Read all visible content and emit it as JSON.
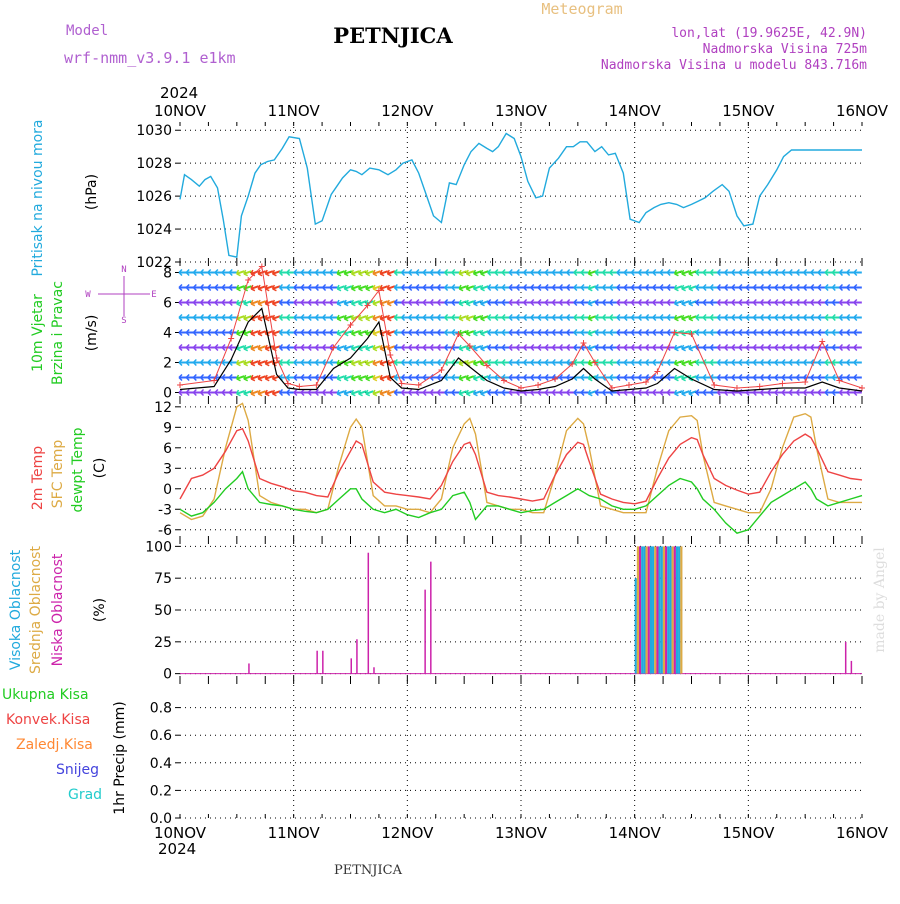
{
  "colors": {
    "model": "#b060d0",
    "meteogram": "#e8c080",
    "info": "#b040c0",
    "pressure": "#22aadd",
    "wind_label": "#22cc22",
    "wind_label2": "#22cc22",
    "temp2m": "#ee4444",
    "sfc": "#ddaa44",
    "dewpt": "#22cc22",
    "cloud_high": "#22aadd",
    "cloud_mid": "#ddaa44",
    "cloud_low": "#cc22aa",
    "precip_total": "#22cc22",
    "precip_conv": "#ee4444",
    "precip_frozen": "#ff8833",
    "snow": "#4444dd",
    "hail": "#22cccc",
    "wind_speed_line": "#000000",
    "gust_line": "#ee4444",
    "watermark": "#dddddd"
  },
  "header": {
    "model_label": "Model",
    "model_name": "wrf-nmm_v3.9.1  e1km",
    "station_title": "PETNJICA",
    "meteogram_label": "Meteogram",
    "lonlat": "lon,lat (19.9625E, 42.9N)",
    "elevation": "Nadmorska Visina 725m",
    "model_elevation": "Nadmorska Visina u modelu 843.716m"
  },
  "footer": {
    "station_name": "PETNJICA",
    "watermark": "made by Angel"
  },
  "axis": {
    "year_top": "2024",
    "year_bottom": "2024",
    "dates": [
      "10NOV",
      "11NOV",
      "12NOV",
      "13NOV",
      "14NOV",
      "15NOV",
      "16NOV"
    ]
  },
  "panels": {
    "pressure": {
      "label1": "Pritisak na nivou mora",
      "unit": "(hPa)"
    },
    "wind": {
      "label1": "10m Vjetar",
      "label2": "Brzina i Pravac",
      "unit": "(m/s)",
      "compass_n": "N",
      "compass_s": "S",
      "compass_w": "W",
      "compass_e": "E"
    },
    "temp": {
      "label1": "2m Temp",
      "label2": "SFC Temp",
      "label3": "dewpt Temp",
      "unit": "(C)"
    },
    "cloud": {
      "label1": "Visoka Oblacnost",
      "label2": "Srednja Oblacnost",
      "label3": "Niska Oblacnost",
      "unit": "(%)"
    },
    "precip": {
      "label1": "Ukupna Kisa",
      "label2": "Konvek.Kisa",
      "label3": "Zaledj.Kisa",
      "label4": "Snijeg",
      "label5": "Grad",
      "unit": "1hr Precip (mm)"
    }
  },
  "chart_data": [
    {
      "type": "line",
      "panel": "pressure",
      "ylim": [
        1022,
        1030.5
      ],
      "yticks": [
        1022,
        1024,
        1026,
        1028,
        1030
      ],
      "x_days": [
        0,
        0.04,
        0.1,
        0.17,
        0.22,
        0.27,
        0.33,
        0.38,
        0.43,
        0.5,
        0.54,
        0.6,
        0.66,
        0.71,
        0.77,
        0.83,
        0.9,
        0.96,
        1.05,
        1.12,
        1.19,
        1.25,
        1.33,
        1.38,
        1.43,
        1.5,
        1.55,
        1.6,
        1.67,
        1.75,
        1.83,
        1.9,
        1.96,
        2.04,
        2.1,
        2.17,
        2.23,
        2.3,
        2.37,
        2.43,
        2.5,
        2.56,
        2.63,
        2.7,
        2.75,
        2.8,
        2.87,
        2.94,
        3.0,
        3.06,
        3.13,
        3.19,
        3.25,
        3.33,
        3.4,
        3.46,
        3.52,
        3.58,
        3.65,
        3.71,
        3.77,
        3.83,
        3.9,
        3.96,
        4.04,
        4.1,
        4.17,
        4.23,
        4.3,
        4.37,
        4.43,
        4.5,
        4.56,
        4.62,
        4.69,
        4.77,
        4.83,
        4.9,
        4.96,
        5.04,
        5.1,
        5.17,
        5.25,
        5.31,
        5.38,
        5.44,
        5.5,
        5.56,
        5.62,
        5.69,
        5.75,
        5.81,
        5.88,
        5.94,
        6.0
      ],
      "pressure_hpa": [
        1025.8,
        1027.3,
        1027.0,
        1026.6,
        1027.0,
        1027.2,
        1026.5,
        1024.6,
        1022.4,
        1022.3,
        1024.8,
        1026.0,
        1027.4,
        1027.9,
        1028.1,
        1028.2,
        1028.9,
        1029.6,
        1029.5,
        1027.7,
        1024.3,
        1024.5,
        1026.1,
        1026.6,
        1027.1,
        1027.6,
        1027.5,
        1027.3,
        1027.7,
        1027.6,
        1027.3,
        1027.6,
        1028.0,
        1028.2,
        1027.4,
        1026.0,
        1024.8,
        1024.4,
        1026.8,
        1026.7,
        1027.9,
        1028.7,
        1029.2,
        1028.9,
        1028.7,
        1029.0,
        1029.8,
        1029.5,
        1028.4,
        1026.9,
        1025.9,
        1026.0,
        1027.7,
        1028.3,
        1029.0,
        1029.0,
        1029.3,
        1029.3,
        1028.7,
        1029.0,
        1028.5,
        1028.6,
        1027.4,
        1024.6,
        1024.4,
        1025.0,
        1025.3,
        1025.5,
        1025.6,
        1025.5,
        1025.3,
        1025.5,
        1025.7,
        1025.9,
        1026.3,
        1026.7,
        1026.3,
        1024.8,
        1024.2,
        1024.3,
        1026.0,
        1026.7,
        1027.6,
        1028.4,
        1028.8,
        1028.8,
        1028.8,
        1028.8,
        1028.8,
        1028.8,
        1028.8,
        1028.8,
        1028.8,
        1028.8,
        1028.8
      ]
    },
    {
      "type": "line",
      "panel": "wind",
      "ylim": [
        -0.5,
        8.7
      ],
      "yticks": [
        0,
        2,
        4,
        6,
        8
      ],
      "wind_speed": {
        "x_days": [
          0,
          0.3,
          0.45,
          0.6,
          0.72,
          0.85,
          0.95,
          1.05,
          1.2,
          1.35,
          1.5,
          1.65,
          1.75,
          1.85,
          1.95,
          2.1,
          2.3,
          2.45,
          2.55,
          2.7,
          2.85,
          3.0,
          3.15,
          3.3,
          3.45,
          3.55,
          3.65,
          3.8,
          3.95,
          4.1,
          4.2,
          4.35,
          4.5,
          4.7,
          4.9,
          5.1,
          5.3,
          5.5,
          5.65,
          5.8,
          6.0
        ],
        "values": [
          0.2,
          0.4,
          2.2,
          4.7,
          5.6,
          1.2,
          0.3,
          0.2,
          0.2,
          1.6,
          2.3,
          3.6,
          4.7,
          1.0,
          0.3,
          0.2,
          0.8,
          2.3,
          1.7,
          0.8,
          0.3,
          0.1,
          0.2,
          0.4,
          0.9,
          1.6,
          0.9,
          0.1,
          0.2,
          0.3,
          0.6,
          1.6,
          0.9,
          0.2,
          0.1,
          0.2,
          0.3,
          0.3,
          0.7,
          0.3,
          0.1
        ]
      },
      "gust": {
        "x_days": [
          0,
          0.3,
          0.45,
          0.6,
          0.72,
          0.85,
          0.95,
          1.05,
          1.2,
          1.35,
          1.5,
          1.65,
          1.75,
          1.85,
          1.95,
          2.1,
          2.3,
          2.45,
          2.55,
          2.7,
          2.85,
          3.0,
          3.15,
          3.3,
          3.45,
          3.55,
          3.65,
          3.8,
          3.95,
          4.1,
          4.2,
          4.35,
          4.5,
          4.7,
          4.9,
          5.1,
          5.3,
          5.5,
          5.65,
          5.8,
          6.0
        ],
        "values": [
          0.5,
          0.8,
          3.6,
          7.5,
          8.4,
          2.3,
          0.6,
          0.4,
          0.5,
          3.0,
          4.5,
          5.8,
          6.8,
          2.5,
          0.6,
          0.5,
          1.5,
          3.9,
          3.1,
          1.8,
          0.8,
          0.3,
          0.5,
          0.9,
          1.9,
          3.3,
          2.0,
          0.3,
          0.5,
          0.7,
          1.4,
          4.0,
          3.9,
          0.5,
          0.3,
          0.4,
          0.6,
          0.7,
          3.4,
          0.8,
          0.3
        ]
      },
      "barb_rows": [
        0,
        1,
        2,
        3,
        4,
        5,
        6,
        7,
        8
      ]
    },
    {
      "type": "line",
      "panel": "temperature",
      "ylim": [
        -7.5,
        13
      ],
      "yticks": [
        -6,
        -3,
        0,
        3,
        6,
        9,
        12
      ],
      "x_days": [
        0,
        0.1,
        0.2,
        0.3,
        0.4,
        0.5,
        0.55,
        0.6,
        0.7,
        0.8,
        0.9,
        1.0,
        1.1,
        1.2,
        1.3,
        1.4,
        1.5,
        1.55,
        1.6,
        1.7,
        1.8,
        1.9,
        2.0,
        2.1,
        2.2,
        2.3,
        2.4,
        2.5,
        2.55,
        2.6,
        2.7,
        2.8,
        2.9,
        3.0,
        3.1,
        3.2,
        3.3,
        3.4,
        3.5,
        3.55,
        3.6,
        3.7,
        3.8,
        3.9,
        4.0,
        4.1,
        4.2,
        4.3,
        4.4,
        4.5,
        4.55,
        4.6,
        4.7,
        4.8,
        4.9,
        5.0,
        5.1,
        5.2,
        5.3,
        5.4,
        5.5,
        5.55,
        5.6,
        5.7,
        5.8,
        5.9,
        6.0
      ],
      "t2m": [
        -1.5,
        1.5,
        2.0,
        3.0,
        5.5,
        8.5,
        8.8,
        7.0,
        1.5,
        0.8,
        0.3,
        -0.3,
        -0.5,
        -1.0,
        -1.2,
        2.5,
        5.5,
        7.0,
        6.5,
        1.0,
        -0.5,
        -0.8,
        -1.0,
        -1.2,
        -1.5,
        0.5,
        4.0,
        6.5,
        6.8,
        5.0,
        -0.5,
        -1.0,
        -1.2,
        -1.5,
        -1.8,
        -1.5,
        2.0,
        5.0,
        6.8,
        6.5,
        4.0,
        -0.8,
        -1.5,
        -2.0,
        -2.2,
        -1.8,
        1.5,
        4.5,
        6.5,
        7.5,
        7.2,
        5.0,
        1.5,
        0.5,
        -0.2,
        -0.8,
        -0.5,
        2.5,
        5.0,
        7.0,
        8.0,
        7.5,
        6.0,
        2.5,
        2.0,
        1.5,
        1.3
      ],
      "tsfc": [
        -3.5,
        -4.5,
        -4.0,
        -1.5,
        6.0,
        12.0,
        12.5,
        10.0,
        -1.0,
        -2.0,
        -2.5,
        -3.0,
        -3.0,
        -3.5,
        -3.0,
        3.5,
        9.0,
        10.2,
        9.0,
        -1.0,
        -2.5,
        -2.5,
        -3.0,
        -3.0,
        -3.5,
        -1.5,
        6.0,
        9.5,
        10.3,
        8.0,
        -2.0,
        -2.5,
        -3.0,
        -3.0,
        -3.5,
        -3.5,
        2.0,
        8.5,
        10.3,
        9.5,
        6.0,
        -2.5,
        -3.0,
        -3.5,
        -3.5,
        -3.5,
        3.0,
        8.5,
        10.5,
        10.7,
        10.0,
        5.0,
        -2.0,
        -2.5,
        -3.0,
        -3.5,
        -3.5,
        0.0,
        6.0,
        10.5,
        11.0,
        10.5,
        6.0,
        -1.5,
        -2.0,
        -2.0,
        -2.0
      ],
      "td": [
        -3.0,
        -4.0,
        -3.5,
        -2.0,
        0.0,
        1.5,
        2.5,
        0.0,
        -2.0,
        -2.3,
        -2.5,
        -3.0,
        -3.3,
        -3.5,
        -3.0,
        -1.5,
        0.0,
        0.0,
        -1.5,
        -3.0,
        -3.5,
        -3.0,
        -3.8,
        -4.2,
        -3.5,
        -3.0,
        -1.0,
        -0.5,
        -2.0,
        -4.5,
        -2.5,
        -2.5,
        -3.0,
        -3.5,
        -3.2,
        -3.0,
        -2.0,
        -1.0,
        0.0,
        -0.5,
        -1.0,
        -1.5,
        -2.5,
        -3.0,
        -3.0,
        -2.5,
        -1.0,
        0.5,
        1.5,
        1.0,
        0.0,
        -1.5,
        -3.0,
        -5.0,
        -6.5,
        -6.0,
        -4.0,
        -2.0,
        -1.0,
        0.0,
        1.0,
        0.0,
        -1.5,
        -2.5,
        -2.0,
        -1.5,
        -1.0
      ]
    },
    {
      "type": "bar",
      "panel": "cloud",
      "ylim": [
        -5,
        105
      ],
      "yticks": [
        0,
        25,
        50,
        75,
        100
      ],
      "low_bars": {
        "x_days": [
          0.6,
          1.2,
          1.25,
          1.5,
          1.55,
          1.65,
          1.7,
          2.15,
          2.2,
          5.85,
          5.9
        ],
        "values": [
          8,
          18,
          18,
          12,
          27,
          95,
          5,
          66,
          88,
          25,
          10
        ]
      },
      "block_start_day": 4.0,
      "block_end_day": 4.42,
      "block_value": 100
    },
    {
      "type": "bar",
      "panel": "precip",
      "ylim": [
        0,
        1.0
      ],
      "yticks": [
        0,
        0.2,
        0.4,
        0.6,
        0.8
      ],
      "values": []
    }
  ]
}
